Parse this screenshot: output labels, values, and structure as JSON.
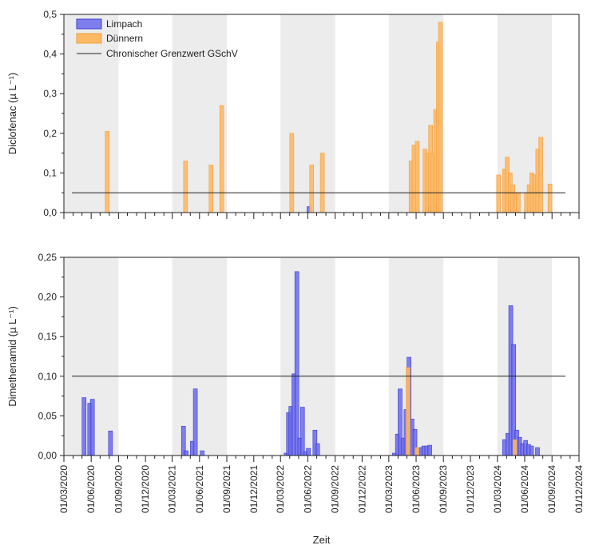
{
  "chart_data": [
    {
      "type": "bar",
      "ylabel": "Diclofenac (µ L⁻¹)",
      "xlabel": "",
      "ylim": [
        0,
        0.5
      ],
      "yticks": [
        "0,0",
        "0,1",
        "0,2",
        "0,3",
        "0,4",
        "0,5"
      ],
      "xlim": [
        "2020-03-01",
        "2024-12-01"
      ],
      "shaded_periods": [
        [
          "2020-03-01",
          "2020-09-01"
        ],
        [
          "2021-03-01",
          "2021-09-01"
        ],
        [
          "2022-03-01",
          "2022-09-01"
        ],
        [
          "2023-03-01",
          "2023-09-01"
        ],
        [
          "2024-03-01",
          "2024-09-01"
        ]
      ],
      "threshold": {
        "name": "Chronischer Grenzwert GSchV",
        "value": 0.05
      },
      "legend": {
        "position": "top-left"
      },
      "series": [
        {
          "name": "Limpach",
          "color": "#6b6bef",
          "points": [
            [
              "2022-06-05",
              0.015
            ],
            [
              "2023-07-18",
              0.015
            ],
            [
              "2023-08-01",
              0.025
            ],
            [
              "2023-08-15",
              0.02
            ]
          ]
        },
        {
          "name": "Dünnern",
          "color": "#fdb966",
          "points": [
            [
              "2020-07-25",
              0.205
            ],
            [
              "2021-04-15",
              0.13
            ],
            [
              "2021-07-10",
              0.12
            ],
            [
              "2021-08-15",
              0.27
            ],
            [
              "2022-04-08",
              0.2
            ],
            [
              "2022-06-14",
              0.12
            ],
            [
              "2022-07-20",
              0.15
            ],
            [
              "2023-05-15",
              0.13
            ],
            [
              "2023-05-25",
              0.17
            ],
            [
              "2023-06-05",
              0.18
            ],
            [
              "2023-07-01",
              0.16
            ],
            [
              "2023-07-10",
              0.15
            ],
            [
              "2023-07-20",
              0.22
            ],
            [
              "2023-07-28",
              0.15
            ],
            [
              "2023-08-06",
              0.26
            ],
            [
              "2023-08-15",
              0.43
            ],
            [
              "2023-08-22",
              0.48
            ],
            [
              "2024-03-05",
              0.095
            ],
            [
              "2024-03-25",
              0.11
            ],
            [
              "2024-04-03",
              0.14
            ],
            [
              "2024-04-13",
              0.1
            ],
            [
              "2024-04-22",
              0.07
            ],
            [
              "2024-05-01",
              0.05
            ],
            [
              "2024-05-10",
              0.05
            ],
            [
              "2024-06-07",
              0.05
            ],
            [
              "2024-06-16",
              0.07
            ],
            [
              "2024-06-25",
              0.1
            ],
            [
              "2024-07-05",
              0.095
            ],
            [
              "2024-07-15",
              0.16
            ],
            [
              "2024-07-25",
              0.19
            ],
            [
              "2024-08-25",
              0.072
            ]
          ]
        }
      ]
    },
    {
      "type": "bar",
      "ylabel": "Dimethenamid (µ L⁻¹)",
      "xlabel": "Zeit",
      "ylim": [
        0,
        0.25
      ],
      "yticks": [
        "0,00",
        "0,05",
        "0,10",
        "0,15",
        "0,20",
        "0,25"
      ],
      "xlim": [
        "2020-03-01",
        "2024-12-01"
      ],
      "xticks": [
        "01/03/2020",
        "01/06/2020",
        "01/09/2020",
        "01/12/2020",
        "01/03/2021",
        "01/06/2021",
        "01/09/2021",
        "01/12/2021",
        "01/03/2022",
        "01/06/2022",
        "01/09/2022",
        "01/12/2022",
        "01/03/2023",
        "01/06/2023",
        "01/09/2023",
        "01/12/2023",
        "01/03/2024",
        "01/06/2024",
        "01/09/2024",
        "01/12/2024"
      ],
      "shaded_periods": [
        [
          "2020-03-01",
          "2020-09-01"
        ],
        [
          "2021-03-01",
          "2021-09-01"
        ],
        [
          "2022-03-01",
          "2022-09-01"
        ],
        [
          "2023-03-01",
          "2023-09-01"
        ],
        [
          "2024-03-01",
          "2024-09-01"
        ]
      ],
      "threshold": {
        "name": "Chronischer Grenzwert GSchV",
        "value": 0.1
      },
      "series": [
        {
          "name": "Limpach",
          "color": "#6b6bef",
          "points": [
            [
              "2020-05-08",
              0.073
            ],
            [
              "2020-05-27",
              0.066
            ],
            [
              "2020-06-05",
              0.071
            ],
            [
              "2020-08-05",
              0.031
            ],
            [
              "2021-04-08",
              0.037
            ],
            [
              "2021-04-17",
              0.006
            ],
            [
              "2021-05-08",
              0.018
            ],
            [
              "2021-05-18",
              0.084
            ],
            [
              "2021-06-10",
              0.006
            ],
            [
              "2022-03-20",
              0.003
            ],
            [
              "2022-03-28",
              0.054
            ],
            [
              "2022-04-05",
              0.062
            ],
            [
              "2022-04-15",
              0.103
            ],
            [
              "2022-04-25",
              0.232
            ],
            [
              "2022-05-05",
              0.022
            ],
            [
              "2022-05-14",
              0.061
            ],
            [
              "2022-05-24",
              0.005
            ],
            [
              "2022-06-03",
              0.009
            ],
            [
              "2022-06-25",
              0.032
            ],
            [
              "2022-07-04",
              0.015
            ],
            [
              "2023-03-20",
              0.003
            ],
            [
              "2023-03-30",
              0.027
            ],
            [
              "2023-04-08",
              0.084
            ],
            [
              "2023-04-18",
              0.022
            ],
            [
              "2023-04-28",
              0.058
            ],
            [
              "2023-05-08",
              0.124
            ],
            [
              "2023-05-18",
              0.046
            ],
            [
              "2023-05-28",
              0.033
            ],
            [
              "2023-06-07",
              0.009
            ],
            [
              "2023-06-17",
              0.01
            ],
            [
              "2023-06-27",
              0.012
            ],
            [
              "2023-07-07",
              0.012
            ],
            [
              "2023-07-17",
              0.013
            ],
            [
              "2024-03-25",
              0.02
            ],
            [
              "2024-04-05",
              0.028
            ],
            [
              "2024-04-15",
              0.189
            ],
            [
              "2024-04-25",
              0.14
            ],
            [
              "2024-05-05",
              0.032
            ],
            [
              "2024-05-15",
              0.023
            ],
            [
              "2024-05-25",
              0.015
            ],
            [
              "2024-06-04",
              0.019
            ],
            [
              "2024-06-14",
              0.014
            ],
            [
              "2024-06-24",
              0.012
            ],
            [
              "2024-07-14",
              0.01
            ]
          ]
        },
        {
          "name": "Dünnern",
          "color": "#fdb966",
          "points": [
            [
              "2023-05-05",
              0.111
            ],
            [
              "2023-06-04",
              0.01
            ],
            [
              "2024-04-29",
              0.02
            ]
          ]
        }
      ]
    }
  ]
}
